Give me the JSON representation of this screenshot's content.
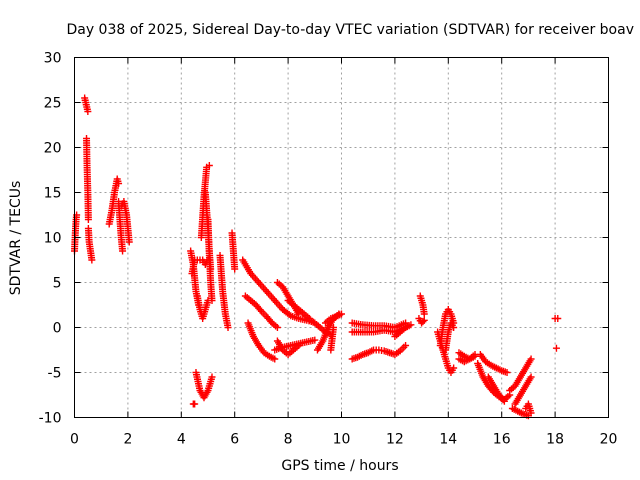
{
  "chart_data": {
    "type": "scatter",
    "title": "Day 038 of 2025, Sidereal Day-to-day VTEC variation (SDTVAR) for receiver boav",
    "xlabel": "GPS time / hours",
    "ylabel": "SDTVAR / TECUs",
    "xlim": [
      0,
      20
    ],
    "ylim": [
      -10,
      30
    ],
    "xticks": [
      0,
      2,
      4,
      6,
      8,
      10,
      12,
      14,
      16,
      18,
      20
    ],
    "yticks": [
      -10,
      -5,
      0,
      5,
      10,
      15,
      20,
      25,
      30
    ],
    "grid": true,
    "marker": "+",
    "color": "#ff0000",
    "segments": [
      {
        "x": [
          0.0,
          0.03,
          0.06,
          0.08
        ],
        "y": [
          8.5,
          10.5,
          12.0,
          12.5
        ]
      },
      {
        "x": [
          0.38,
          0.42,
          0.46,
          0.5
        ],
        "y": [
          25.5,
          25.0,
          24.5,
          24.0
        ]
      },
      {
        "x": [
          0.45,
          0.47,
          0.5,
          0.52
        ],
        "y": [
          21.0,
          18.0,
          15.0,
          12.0
        ]
      },
      {
        "x": [
          0.52,
          0.55,
          0.6,
          0.65
        ],
        "y": [
          11.0,
          9.5,
          8.5,
          7.5
        ]
      },
      {
        "x": [
          1.3,
          1.4,
          1.5,
          1.6,
          1.65
        ],
        "y": [
          11.5,
          13.0,
          15.0,
          16.5,
          16.0
        ]
      },
      {
        "x": [
          1.65,
          1.7,
          1.75,
          1.8
        ],
        "y": [
          14.0,
          12.0,
          10.0,
          8.5
        ]
      },
      {
        "x": [
          1.75,
          1.85,
          1.95,
          2.05
        ],
        "y": [
          13.5,
          14.0,
          12.5,
          9.5
        ]
      },
      {
        "x": [
          4.35,
          4.45,
          4.55,
          4.65
        ],
        "y": [
          8.5,
          7.0,
          4.0,
          2.5
        ]
      },
      {
        "x": [
          4.4,
          4.5,
          4.6,
          4.7,
          4.8,
          4.9,
          5.0
        ],
        "y": [
          6.0,
          7.5,
          7.5,
          7.5,
          7.5,
          7.0,
          7.5
        ]
      },
      {
        "x": [
          4.75,
          4.85,
          4.95,
          5.05
        ],
        "y": [
          10.0,
          14.5,
          17.8,
          18.0
        ]
      },
      {
        "x": [
          4.9,
          4.95,
          5.0,
          5.05,
          5.1
        ],
        "y": [
          15.0,
          13.0,
          11.0,
          8.5,
          6.5
        ]
      },
      {
        "x": [
          5.0,
          5.05,
          5.1,
          5.15
        ],
        "y": [
          12.0,
          8.0,
          5.0,
          3.0
        ]
      },
      {
        "x": [
          4.6,
          4.7,
          4.8,
          4.9,
          5.0
        ],
        "y": [
          3.5,
          2.0,
          1.0,
          2.0,
          3.0
        ]
      },
      {
        "x": [
          4.45,
          4.5
        ],
        "y": [
          -8.5,
          -8.5
        ]
      },
      {
        "x": [
          4.55,
          4.7,
          4.85,
          5.0,
          5.15
        ],
        "y": [
          -5.0,
          -7.0,
          -7.8,
          -7.0,
          -5.5
        ]
      },
      {
        "x": [
          5.45,
          5.55,
          5.65,
          5.75
        ],
        "y": [
          8.0,
          4.0,
          1.5,
          0.0
        ]
      },
      {
        "x": [
          5.9,
          6.0
        ],
        "y": [
          10.5,
          6.5
        ]
      },
      {
        "x": [
          6.3,
          6.6,
          6.9,
          7.2,
          7.5,
          7.8,
          8.1,
          8.4,
          8.7,
          8.95
        ],
        "y": [
          7.5,
          6.0,
          5.0,
          4.0,
          3.0,
          2.0,
          1.3,
          1.0,
          0.8,
          0.6
        ]
      },
      {
        "x": [
          6.5,
          6.7,
          6.9,
          7.1,
          7.3,
          7.5
        ],
        "y": [
          0.5,
          -1.0,
          -2.0,
          -2.8,
          -3.2,
          -3.5
        ]
      },
      {
        "x": [
          7.5,
          7.8,
          8.1,
          8.4,
          8.7,
          9.0
        ],
        "y": [
          -2.5,
          -2.2,
          -2.0,
          -1.8,
          -1.6,
          -1.4
        ]
      },
      {
        "x": [
          6.4,
          6.6,
          6.8,
          7.0,
          7.2,
          7.4,
          7.6
        ],
        "y": [
          3.5,
          3.0,
          2.5,
          1.8,
          1.2,
          0.5,
          0.0
        ]
      },
      {
        "x": [
          7.6,
          7.8,
          8.0,
          8.2,
          8.4
        ],
        "y": [
          5.0,
          4.5,
          3.5,
          2.5,
          1.5
        ]
      },
      {
        "x": [
          8.8,
          9.0,
          9.2,
          9.4,
          9.6
        ],
        "y": [
          0.8,
          0.5,
          0.0,
          -0.5,
          -0.8
        ]
      },
      {
        "x": [
          7.6,
          7.8,
          8.0,
          8.2,
          8.4
        ],
        "y": [
          -1.5,
          -2.5,
          -3.0,
          -2.5,
          -2.0
        ]
      },
      {
        "x": [
          8.0,
          8.2,
          8.4,
          8.6,
          8.8
        ],
        "y": [
          3.0,
          2.5,
          2.0,
          1.5,
          1.0
        ]
      },
      {
        "x": [
          9.1,
          9.3,
          9.5,
          9.7,
          9.9
        ],
        "y": [
          -2.5,
          -1.5,
          0.0,
          1.0,
          1.5
        ]
      },
      {
        "x": [
          9.4,
          9.6,
          9.8,
          10.0
        ],
        "y": [
          0.5,
          1.0,
          1.2,
          1.5
        ]
      },
      {
        "x": [
          9.6,
          9.7
        ],
        "y": [
          -2.5,
          0.0
        ]
      },
      {
        "x": [
          10.4,
          10.8,
          11.2,
          11.6,
          12.0,
          12.4
        ],
        "y": [
          0.5,
          0.3,
          0.2,
          0.2,
          0.0,
          0.5
        ]
      },
      {
        "x": [
          10.4,
          10.8,
          11.2,
          11.6,
          12.0,
          12.4
        ],
        "y": [
          -0.5,
          -0.5,
          -0.5,
          -0.3,
          -0.5,
          0.0
        ]
      },
      {
        "x": [
          10.4,
          10.6,
          10.8,
          11.0,
          11.2,
          11.4,
          11.6,
          11.8,
          12.0,
          12.2,
          12.4
        ],
        "y": [
          -3.5,
          -3.3,
          -3.0,
          -2.8,
          -2.5,
          -2.5,
          -2.6,
          -2.8,
          -3.0,
          -2.6,
          -2.0
        ]
      },
      {
        "x": [
          12.0,
          12.2,
          12.4,
          12.6
        ],
        "y": [
          -1.0,
          -0.5,
          0.0,
          0.3
        ]
      },
      {
        "x": [
          12.95,
          13.0,
          13.05,
          13.1
        ],
        "y": [
          3.5,
          3.0,
          2.5,
          1.5
        ]
      },
      {
        "x": [
          12.9,
          13.0,
          13.1
        ],
        "y": [
          1.0,
          0.5,
          0.8
        ]
      },
      {
        "x": [
          13.7,
          13.8,
          13.9,
          14.0,
          14.1,
          14.2
        ],
        "y": [
          -2.0,
          0.0,
          1.5,
          2.0,
          1.5,
          0.5
        ]
      },
      {
        "x": [
          13.6,
          13.7,
          13.8,
          13.9,
          14.0,
          14.1,
          14.2
        ],
        "y": [
          -0.5,
          -1.5,
          -2.5,
          -3.5,
          -4.5,
          -5.0,
          -4.5
        ]
      },
      {
        "x": [
          13.9,
          14.0,
          14.1,
          14.2
        ],
        "y": [
          -2.5,
          -0.5,
          0.5,
          0.0
        ]
      },
      {
        "x": [
          14.4,
          14.6,
          14.8,
          15.0
        ],
        "y": [
          -2.8,
          -3.2,
          -3.5,
          -3.0
        ]
      },
      {
        "x": [
          14.4,
          14.6,
          14.8,
          15.0
        ],
        "y": [
          -3.5,
          -3.8,
          -3.5,
          -3.2
        ]
      },
      {
        "x": [
          15.2,
          15.4,
          15.6,
          15.8,
          16.0,
          16.2
        ],
        "y": [
          -3.0,
          -3.8,
          -4.2,
          -4.5,
          -4.8,
          -5.0
        ]
      },
      {
        "x": [
          15.1,
          15.3,
          15.5,
          15.7,
          15.9,
          16.1,
          16.3
        ],
        "y": [
          -4.0,
          -5.5,
          -6.5,
          -7.2,
          -7.7,
          -8.0,
          -7.5
        ]
      },
      {
        "x": [
          15.5,
          15.7,
          15.9,
          16.1
        ],
        "y": [
          -5.5,
          -6.5,
          -7.5,
          -8.2
        ]
      },
      {
        "x": [
          16.3,
          16.5,
          16.7,
          16.9,
          17.1
        ],
        "y": [
          -7.0,
          -6.5,
          -5.5,
          -4.5,
          -3.5
        ]
      },
      {
        "x": [
          16.4,
          16.6,
          16.8,
          17.0
        ],
        "y": [
          -9.0,
          -9.3,
          -9.6,
          -9.8
        ]
      },
      {
        "x": [
          16.5,
          16.7,
          16.9,
          17.1
        ],
        "y": [
          -8.5,
          -7.5,
          -6.5,
          -5.5
        ]
      },
      {
        "x": [
          16.9,
          17.0,
          17.1
        ],
        "y": [
          -9.0,
          -8.5,
          -9.5
        ]
      },
      {
        "x": [
          18.0,
          18.1
        ],
        "y": [
          1.0,
          1.0
        ]
      },
      {
        "x": [
          18.05
        ],
        "y": [
          -2.3
        ]
      }
    ]
  }
}
